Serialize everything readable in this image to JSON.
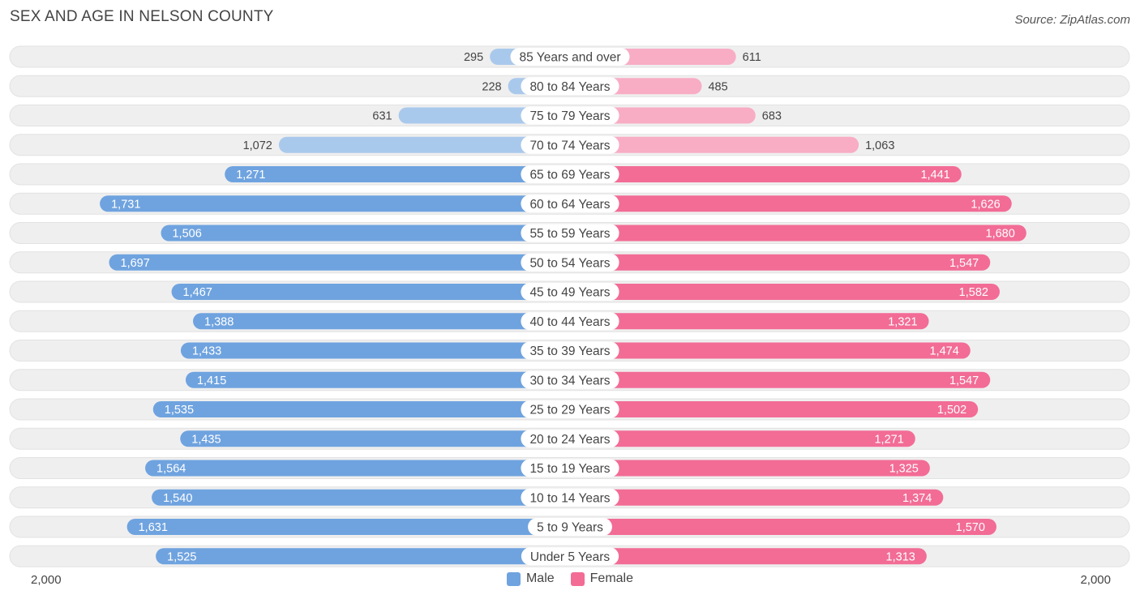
{
  "header": {
    "title": "SEX AND AGE IN NELSON COUNTY",
    "source": "Source: ZipAtlas.com"
  },
  "axis": {
    "left_label": "2,000",
    "right_label": "2,000"
  },
  "legend": {
    "male_label": "Male",
    "female_label": "Female"
  },
  "colors": {
    "male_strong": "#6fa3df",
    "male_light": "#a9c9ec",
    "female_strong": "#f26c96",
    "female_light": "#f8adc5",
    "row_bg": "#efefef"
  },
  "chart_data": {
    "type": "bar",
    "orientation": "horizontal-diverging",
    "title": "SEX AND AGE IN NELSON COUNTY",
    "xlim": [
      0,
      2000
    ],
    "categories": [
      "85 Years and over",
      "80 to 84 Years",
      "75 to 79 Years",
      "70 to 74 Years",
      "65 to 69 Years",
      "60 to 64 Years",
      "55 to 59 Years",
      "50 to 54 Years",
      "45 to 49 Years",
      "40 to 44 Years",
      "35 to 39 Years",
      "30 to 34 Years",
      "25 to 29 Years",
      "20 to 24 Years",
      "15 to 19 Years",
      "10 to 14 Years",
      "5 to 9 Years",
      "Under 5 Years"
    ],
    "series": [
      {
        "name": "Male",
        "values": [
          295,
          228,
          631,
          1072,
          1271,
          1731,
          1506,
          1697,
          1467,
          1388,
          1433,
          1415,
          1535,
          1435,
          1564,
          1540,
          1631,
          1525
        ],
        "labels": [
          "295",
          "228",
          "631",
          "1,072",
          "1,271",
          "1,731",
          "1,506",
          "1,697",
          "1,467",
          "1,388",
          "1,433",
          "1,415",
          "1,535",
          "1,435",
          "1,564",
          "1,540",
          "1,631",
          "1,525"
        ]
      },
      {
        "name": "Female",
        "values": [
          611,
          485,
          683,
          1063,
          1441,
          1626,
          1680,
          1547,
          1582,
          1321,
          1474,
          1547,
          1502,
          1271,
          1325,
          1374,
          1570,
          1313
        ],
        "labels": [
          "611",
          "485",
          "683",
          "1,063",
          "1,441",
          "1,626",
          "1,680",
          "1,547",
          "1,582",
          "1,321",
          "1,474",
          "1,547",
          "1,502",
          "1,271",
          "1,325",
          "1,374",
          "1,570",
          "1,313"
        ]
      }
    ],
    "legend_position": "bottom-center"
  }
}
